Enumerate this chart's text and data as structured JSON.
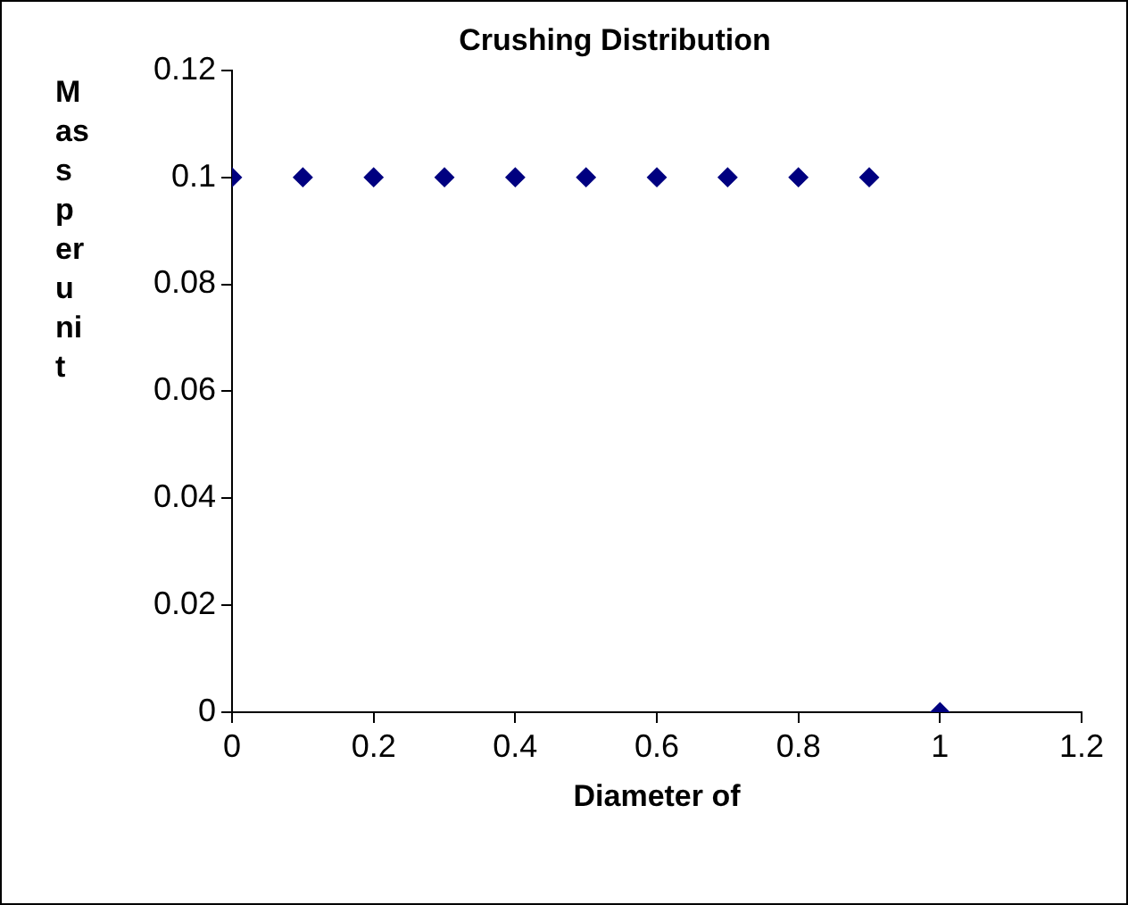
{
  "chart_data": {
    "type": "scatter",
    "title": "Crushing Distribution",
    "xlabel": "Diameter of",
    "ylabel": "Mass per unit",
    "x": [
      0,
      0.1,
      0.2,
      0.3,
      0.4,
      0.5,
      0.6,
      0.7,
      0.8,
      0.9,
      1
    ],
    "series": [
      {
        "color": "#000080",
        "values": [
          0.1,
          0.1,
          0.1,
          0.1,
          0.1,
          0.1,
          0.1,
          0.1,
          0.1,
          0.1,
          0
        ]
      }
    ],
    "xlim": [
      0,
      1.2
    ],
    "xticks": [
      0,
      0.2,
      0.4,
      0.6,
      0.8,
      1,
      1.2
    ],
    "ylim": [
      0,
      0.12
    ],
    "yticks": [
      0,
      0.02,
      0.04,
      0.06,
      0.08,
      0.1,
      0.12
    ],
    "grid": false,
    "legend": false,
    "marker": "diamond"
  }
}
